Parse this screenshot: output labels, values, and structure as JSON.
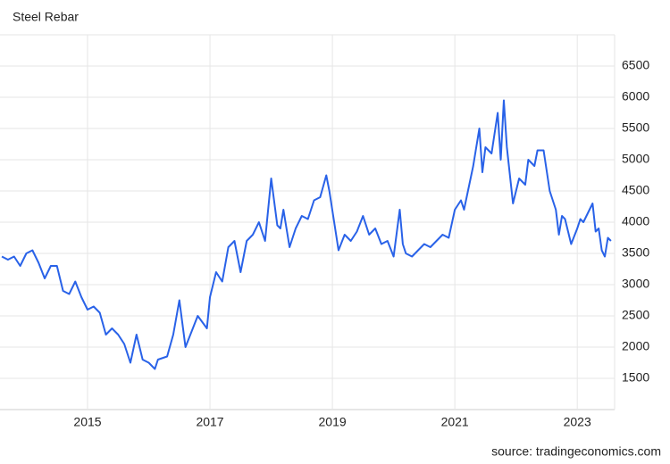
{
  "chart_data": {
    "type": "line",
    "title": "Steel Rebar",
    "source": "source: tradingeconomics.com",
    "x": [
      2013.6,
      2013.7,
      2013.8,
      2013.9,
      2014.0,
      2014.1,
      2014.2,
      2014.3,
      2014.4,
      2014.5,
      2014.6,
      2014.7,
      2014.8,
      2014.9,
      2015.0,
      2015.1,
      2015.2,
      2015.3,
      2015.4,
      2015.5,
      2015.6,
      2015.7,
      2015.8,
      2015.9,
      2016.0,
      2016.1,
      2016.15,
      2016.3,
      2016.4,
      2016.5,
      2016.6,
      2016.7,
      2016.8,
      2016.95,
      2017.0,
      2017.1,
      2017.2,
      2017.3,
      2017.4,
      2017.5,
      2017.6,
      2017.7,
      2017.8,
      2017.9,
      2018.0,
      2018.1,
      2018.15,
      2018.2,
      2018.3,
      2018.4,
      2018.5,
      2018.6,
      2018.7,
      2018.8,
      2018.9,
      2018.95,
      2019.1,
      2019.2,
      2019.3,
      2019.4,
      2019.5,
      2019.6,
      2019.7,
      2019.8,
      2019.9,
      2020.0,
      2020.1,
      2020.15,
      2020.2,
      2020.3,
      2020.4,
      2020.5,
      2020.6,
      2020.7,
      2020.8,
      2020.9,
      2021.0,
      2021.1,
      2021.15,
      2021.3,
      2021.4,
      2021.45,
      2021.5,
      2021.6,
      2021.7,
      2021.75,
      2021.8,
      2021.85,
      2021.95,
      2022.05,
      2022.15,
      2022.2,
      2022.3,
      2022.35,
      2022.45,
      2022.55,
      2022.65,
      2022.7,
      2022.75,
      2022.8,
      2022.9,
      2023.0,
      2023.05,
      2023.1,
      2023.2,
      2023.25,
      2023.3,
      2023.35,
      2023.4,
      2023.45,
      2023.5,
      2023.55
    ],
    "series": [
      {
        "name": "Steel Rebar",
        "color": "#2962e8",
        "values": [
          3450,
          3400,
          3450,
          3300,
          3500,
          3550,
          3350,
          3100,
          3300,
          3300,
          2900,
          2850,
          3050,
          2800,
          2600,
          2650,
          2550,
          2200,
          2300,
          2200,
          2050,
          1750,
          2200,
          1800,
          1750,
          1650,
          1800,
          1850,
          2200,
          2750,
          2000,
          2250,
          2500,
          2300,
          2800,
          3200,
          3050,
          3600,
          3700,
          3200,
          3700,
          3800,
          4000,
          3700,
          4700,
          3950,
          3900,
          4200,
          3600,
          3900,
          4100,
          4050,
          4350,
          4400,
          4750,
          4500,
          3550,
          3800,
          3700,
          3850,
          4100,
          3800,
          3900,
          3650,
          3700,
          3450,
          4200,
          3650,
          3500,
          3450,
          3550,
          3650,
          3600,
          3700,
          3800,
          3750,
          4200,
          4350,
          4200,
          4900,
          5500,
          4800,
          5200,
          5100,
          5750,
          5000,
          5950,
          5200,
          4300,
          4700,
          4600,
          5000,
          4900,
          5150,
          5150,
          4500,
          4200,
          3800,
          4100,
          4050,
          3650,
          3900,
          4050,
          4000,
          4200,
          4300,
          3850,
          3900,
          3550,
          3450,
          3750,
          3700
        ]
      }
    ],
    "xlim": [
      2013.57,
      2023.61
    ],
    "xticks": [
      2015,
      2017,
      2019,
      2021,
      2023
    ],
    "ylim": [
      1000,
      7000
    ],
    "yticks": [
      1500,
      2000,
      2500,
      3000,
      3500,
      4000,
      4500,
      5000,
      5500,
      6000,
      6500
    ],
    "grid": true
  }
}
